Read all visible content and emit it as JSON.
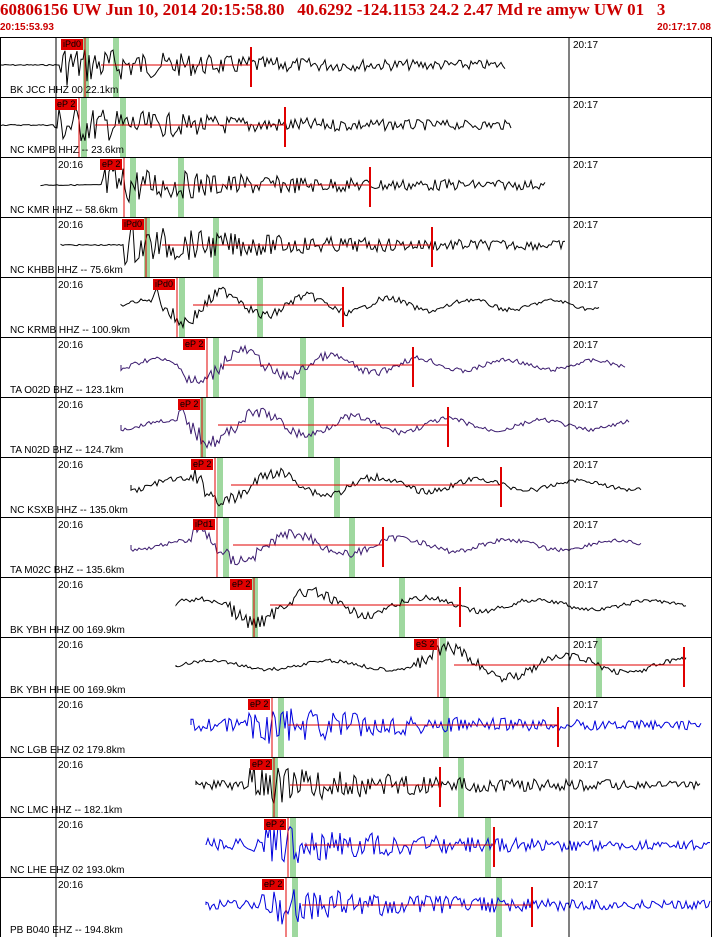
{
  "header": {
    "title": "60806156 UW Jun 10, 2014 20:15:58.80   40.6292 -124.1153 24.2 2.47 Md re amyw UW 01   3",
    "time_start": "20:15:53.93",
    "time_end": "20:17:17.08"
  },
  "colors": {
    "red": "#e00000",
    "black": "#000000",
    "purple": "#3a1a6e",
    "blue": "#0000dd",
    "green": "#9fd89f",
    "header_red": "#cc0000"
  },
  "traces": [
    {
      "label": "BK JCC HHZ 00 22.1km",
      "t16": "",
      "t17": "20:17",
      "pick": "iPd0",
      "pick_x": 60,
      "color": "black",
      "start": 0,
      "end": 505
    },
    {
      "label": "NC KMPB HHZ -- 23.6km",
      "t16": "",
      "t17": "20:17",
      "pick": "eP 2",
      "pick_x": 54,
      "color": "black",
      "start": 0,
      "end": 510
    },
    {
      "label": "NC KMR HHZ -- 58.6km",
      "t16": "20:16",
      "t17": "20:17",
      "pick": "eP 2",
      "pick_x": 99,
      "color": "black",
      "start": 40,
      "end": 545
    },
    {
      "label": "NC KHBB HHZ -- 75.6km",
      "t16": "20:16",
      "t17": "20:17",
      "pick": "iPd0",
      "pick_x": 121,
      "color": "black",
      "start": 60,
      "end": 565
    },
    {
      "label": "NC KRMB HHZ -- 100.9km",
      "t16": "20:16",
      "t17": "20:17",
      "pick": "iPd0",
      "pick_x": 152,
      "color": "black",
      "start": 120,
      "end": 598
    },
    {
      "label": "TA O02D BHZ -- 123.1km",
      "t16": "20:16",
      "t17": "20:17",
      "pick": "eP 2",
      "pick_x": 182,
      "color": "purple",
      "start": 120,
      "end": 625
    },
    {
      "label": "TA N02D BHZ -- 124.7km",
      "t16": "20:16",
      "t17": "20:17",
      "pick": "eP 2",
      "pick_x": 177,
      "color": "purple",
      "start": 120,
      "end": 628
    },
    {
      "label": "NC KSXB HHZ -- 135.0km",
      "t16": "20:16",
      "t17": "20:17",
      "pick": "eP 2",
      "pick_x": 190,
      "color": "black",
      "start": 130,
      "end": 640
    },
    {
      "label": "TA M02C BHZ -- 135.6km",
      "t16": "20:16",
      "t17": "20:17",
      "pick": "iPd1",
      "pick_x": 192,
      "color": "purple",
      "start": 130,
      "end": 640
    },
    {
      "label": "BK YBH HHZ 00 169.9km",
      "t16": "20:16",
      "t17": "20:17",
      "pick": "eP 2",
      "pick_x": 229,
      "color": "black",
      "start": 175,
      "end": 685
    },
    {
      "label": "BK YBH HHE 00 169.9km",
      "t16": "20:16",
      "t17": "20:17",
      "pick": "eS 2",
      "pick_x": 413,
      "color": "black",
      "start": 175,
      "end": 685
    },
    {
      "label": "NC LGB EHZ 02 179.8km",
      "t16": "20:16",
      "t17": "20:17",
      "pick": "eP 2",
      "pick_x": 247,
      "color": "blue",
      "start": 190,
      "end": 700
    },
    {
      "label": "NC LMC HHZ -- 182.1km",
      "t16": "20:16",
      "t17": "20:17",
      "pick": "eP 2",
      "pick_x": 249,
      "color": "black",
      "start": 195,
      "end": 700
    },
    {
      "label": "NC LHE EHZ 02 193.0km",
      "t16": "20:16",
      "t17": "20:17",
      "pick": "eP 2",
      "pick_x": 263,
      "color": "blue",
      "start": 205,
      "end": 710
    },
    {
      "label": "PB B040 EHZ -- 194.8km",
      "t16": "20:16",
      "t17": "20:17",
      "pick": "eP 2",
      "pick_x": 261,
      "color": "blue",
      "start": 205,
      "end": 710
    }
  ]
}
